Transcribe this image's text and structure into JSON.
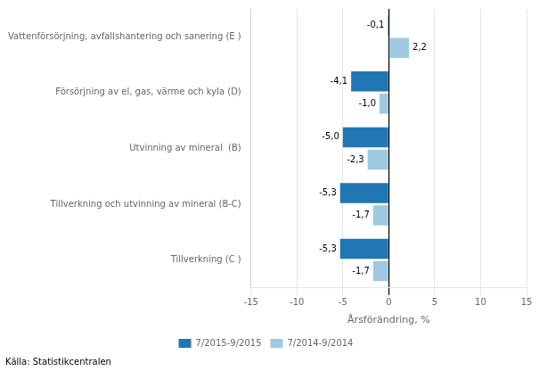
{
  "chart_data": {
    "type": "bar",
    "orientation": "horizontal",
    "categories": [
      "Tillverkning (C )",
      "Tillverkning och utvinning av mineral (B-C)",
      "Utvinning av mineral  (B)",
      "Försörjning av el, gas, värme och kyla (D)",
      "Vattenförsörjning, avfallshantering och sanering (E )"
    ],
    "series": [
      {
        "name": "7/2015-9/2015",
        "color": "#2077b4",
        "values": [
          -5.3,
          -5.3,
          -5.0,
          -4.1,
          -0.1
        ],
        "value_labels": [
          "-5,3",
          "-5,3",
          "-5,0",
          "-4,1",
          "-0,1"
        ]
      },
      {
        "name": "7/2014-9/2014",
        "color": "#9ecae1",
        "values": [
          -1.7,
          -1.7,
          -2.3,
          -1.0,
          2.2
        ],
        "value_labels": [
          "-1,7",
          "-1,7",
          "-2,3",
          "-1,0",
          "2,2"
        ]
      }
    ],
    "xlabel": "Årsförändring, %",
    "xlim": [
      -15,
      15
    ],
    "xticks": [
      -15,
      -10,
      -5,
      0,
      5,
      10,
      15
    ],
    "grid": true,
    "legend": "bottom",
    "data_labels": true,
    "source": "Källa: Statistikcentralen"
  }
}
